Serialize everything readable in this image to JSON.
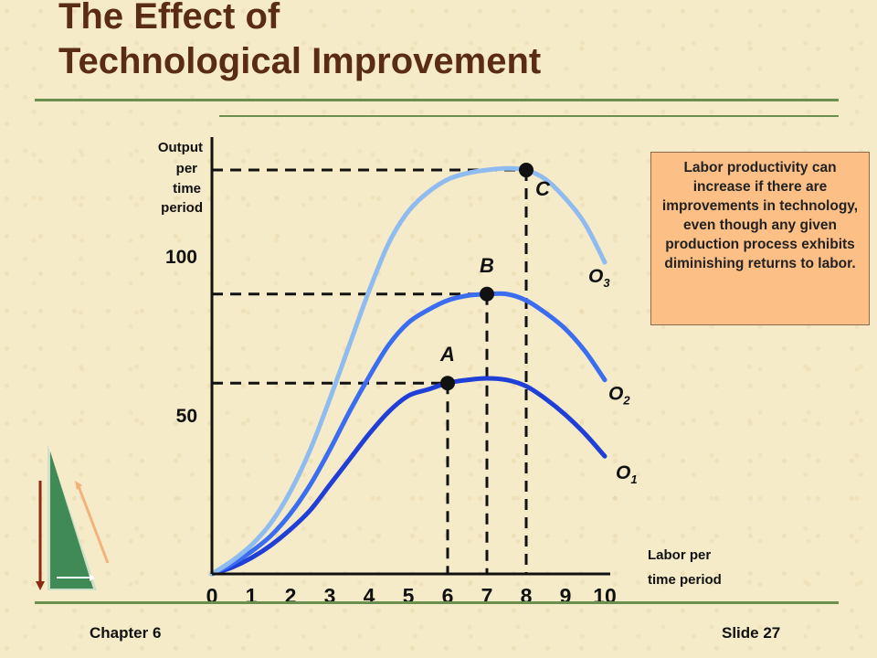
{
  "slide": {
    "title_line1": "The Effect of",
    "title_line2": "Technological Improvement",
    "footer_left": "Chapter 6",
    "footer_right": "Slide 27",
    "note": "Labor productivity can increase if there are improvements in technology, even though any given production process exhibits diminishing returns to labor."
  },
  "chart_data": {
    "type": "line",
    "title": "",
    "ylabel_lines": [
      "Output",
      "per",
      "time",
      "period"
    ],
    "xlabel_lines": [
      "Labor per",
      "time period"
    ],
    "xlim": [
      0,
      10
    ],
    "ylim": [
      0,
      133
    ],
    "x_ticks": [
      "0",
      "1",
      "2",
      "3",
      "4",
      "5",
      "6",
      "7",
      "8",
      "9",
      "10"
    ],
    "y_ticks": [
      {
        "value": 50,
        "label": "50"
      },
      {
        "value": 100,
        "label": "100"
      }
    ],
    "series": [
      {
        "name": "O1",
        "label_main": "O",
        "label_sub": "1",
        "color": "#1f3fd6",
        "x": [
          0,
          0.5,
          1,
          1.5,
          2,
          2.5,
          3,
          3.5,
          4,
          4.5,
          5,
          5.5,
          6,
          6.5,
          7,
          7.5,
          8,
          8.5,
          9,
          9.5,
          10
        ],
        "y": [
          0,
          2,
          5,
          9,
          14,
          20,
          28,
          36,
          44,
          51,
          56,
          58,
          60,
          61,
          61.5,
          61,
          59,
          55,
          50,
          44,
          37
        ]
      },
      {
        "name": "O2",
        "label_main": "O",
        "label_sub": "2",
        "color": "#3b6df0",
        "x": [
          0,
          0.5,
          1,
          1.5,
          2,
          2.5,
          3,
          3.5,
          4,
          4.5,
          5,
          5.5,
          6,
          6.5,
          7,
          7.5,
          8,
          8.5,
          9,
          9.5,
          10
        ],
        "y": [
          0,
          3,
          7,
          12,
          19,
          28,
          39,
          51,
          62,
          72,
          79,
          83,
          86,
          87.5,
          88,
          88,
          86,
          82,
          77,
          70,
          61
        ]
      },
      {
        "name": "O3",
        "label_main": "O",
        "label_sub": "3",
        "color": "#8fbcf0",
        "x": [
          0,
          0.5,
          1,
          1.5,
          2,
          2.5,
          3,
          3.5,
          4,
          4.5,
          5,
          5.5,
          6,
          6.5,
          7,
          7.5,
          8,
          8.5,
          9,
          9.5,
          10
        ],
        "y": [
          0,
          4,
          9,
          16,
          26,
          39,
          55,
          72,
          89,
          104,
          114,
          120,
          124,
          126,
          127,
          127.5,
          127,
          124,
          118,
          110,
          98
        ]
      }
    ],
    "points": [
      {
        "label": "A",
        "x": 6,
        "y": 60
      },
      {
        "label": "B",
        "x": 7,
        "y": 88
      },
      {
        "label": "C",
        "x": 8,
        "y": 127
      }
    ]
  }
}
